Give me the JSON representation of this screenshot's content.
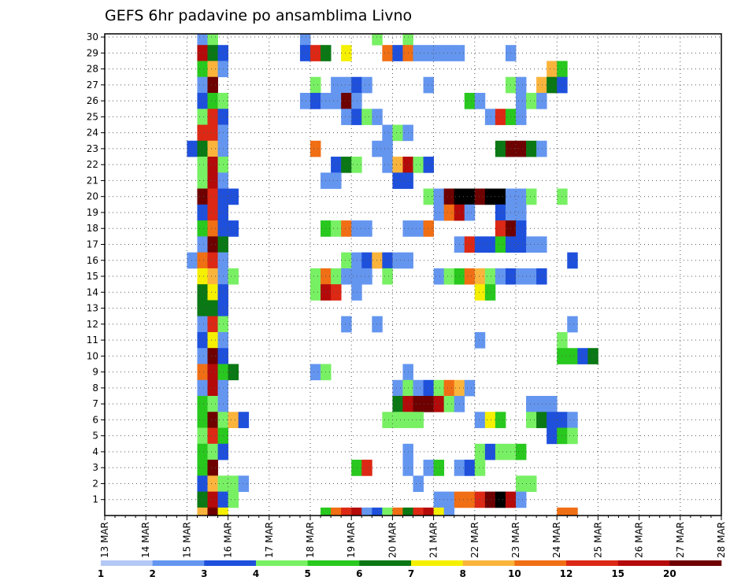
{
  "chart_data": {
    "type": "heatmap",
    "title": "GEFS 6hr padavine po ansamblima Livno",
    "x_tick_labels": [
      "13 MAR",
      "14 MAR",
      "15 MAR",
      "16 MAR",
      "17 MAR",
      "18 MAR",
      "19 MAR",
      "20 MAR",
      "21 MAR",
      "22 MAR",
      "23 MAR",
      "24 MAR",
      "25 MAR",
      "26 MAR",
      "27 MAR",
      "28 MAR"
    ],
    "y_tick_labels": [
      "1",
      "2",
      "3",
      "4",
      "5",
      "6",
      "7",
      "8",
      "9",
      "10",
      "11",
      "12",
      "13",
      "14",
      "15",
      "16",
      "17",
      "18",
      "19",
      "20",
      "21",
      "22",
      "23",
      "24",
      "25",
      "26",
      "27",
      "28",
      "29",
      "30"
    ],
    "ylim": [
      0,
      30
    ],
    "n_time_steps": 60,
    "grid": true,
    "legend": {
      "placement": "bottom",
      "labels": [
        "1",
        "2",
        "3",
        "4",
        "5",
        "6",
        "7",
        "8",
        "10",
        "12",
        "15",
        "20"
      ],
      "colors": [
        "#b4c8f5",
        "#6496f0",
        "#1e50dc",
        "#78f064",
        "#28c81e",
        "#0a7814",
        "#f5f000",
        "#fab43c",
        "#f06e14",
        "#dc2814",
        "#b40a0a",
        "#6e0000"
      ]
    },
    "cells": [
      [
        9,
        30,
        1
      ],
      [
        10,
        30,
        3
      ],
      [
        29,
        30,
        3
      ],
      [
        9,
        29,
        10
      ],
      [
        10,
        29,
        5
      ],
      [
        11,
        29,
        2
      ],
      [
        9,
        28,
        4
      ],
      [
        10,
        28,
        7
      ],
      [
        11,
        28,
        1
      ],
      [
        9,
        27,
        1
      ],
      [
        10,
        27,
        11
      ],
      [
        9,
        26,
        2
      ],
      [
        10,
        26,
        4
      ],
      [
        11,
        26,
        3
      ],
      [
        9,
        25,
        3
      ],
      [
        10,
        25,
        9
      ],
      [
        11,
        25,
        2
      ],
      [
        9,
        24,
        9
      ],
      [
        10,
        24,
        9
      ],
      [
        11,
        24,
        1
      ],
      [
        8,
        23,
        2
      ],
      [
        9,
        23,
        5
      ],
      [
        10,
        23,
        7
      ],
      [
        11,
        23,
        1
      ],
      [
        9,
        22,
        3
      ],
      [
        10,
        22,
        10
      ],
      [
        11,
        22,
        3
      ],
      [
        9,
        21,
        3
      ],
      [
        10,
        21,
        10
      ],
      [
        11,
        21,
        1
      ],
      [
        9,
        20,
        11
      ],
      [
        10,
        20,
        9
      ],
      [
        11,
        20,
        2
      ],
      [
        12,
        20,
        2
      ],
      [
        9,
        19,
        2
      ],
      [
        10,
        19,
        9
      ],
      [
        11,
        19,
        2
      ],
      [
        9,
        18,
        4
      ],
      [
        10,
        18,
        8
      ],
      [
        11,
        18,
        2
      ],
      [
        12,
        18,
        2
      ],
      [
        9,
        17,
        1
      ],
      [
        10,
        17,
        11
      ],
      [
        11,
        17,
        5
      ],
      [
        8,
        16,
        1
      ],
      [
        9,
        16,
        8
      ],
      [
        10,
        16,
        9
      ],
      [
        11,
        16,
        1
      ],
      [
        9,
        15,
        6
      ],
      [
        10,
        15,
        7
      ],
      [
        11,
        15,
        1
      ],
      [
        12,
        15,
        3
      ],
      [
        9,
        14,
        5
      ],
      [
        10,
        14,
        6
      ],
      [
        11,
        14,
        2
      ],
      [
        9,
        13,
        5
      ],
      [
        10,
        13,
        5
      ],
      [
        11,
        13,
        2
      ],
      [
        9,
        12,
        1
      ],
      [
        10,
        12,
        9
      ],
      [
        11,
        12,
        3
      ],
      [
        9,
        11,
        2
      ],
      [
        10,
        11,
        6
      ],
      [
        11,
        11,
        1
      ],
      [
        9,
        10,
        1
      ],
      [
        10,
        10,
        11
      ],
      [
        11,
        10,
        2
      ],
      [
        9,
        9,
        8
      ],
      [
        10,
        9,
        10
      ],
      [
        11,
        9,
        4
      ],
      [
        12,
        9,
        5
      ],
      [
        9,
        8,
        1
      ],
      [
        10,
        8,
        10
      ],
      [
        11,
        8,
        1
      ],
      [
        9,
        7,
        4
      ],
      [
        10,
        7,
        3
      ],
      [
        11,
        7,
        1
      ],
      [
        9,
        6,
        4
      ],
      [
        10,
        6,
        11
      ],
      [
        11,
        6,
        3
      ],
      [
        12,
        6,
        7
      ],
      [
        13,
        6,
        2
      ],
      [
        9,
        5,
        3
      ],
      [
        10,
        5,
        9
      ],
      [
        11,
        5,
        4
      ],
      [
        9,
        4,
        4
      ],
      [
        10,
        4,
        3
      ],
      [
        11,
        4,
        2
      ],
      [
        9,
        3,
        4
      ],
      [
        10,
        3,
        11
      ],
      [
        9,
        2,
        2
      ],
      [
        10,
        2,
        7
      ],
      [
        11,
        2,
        3
      ],
      [
        12,
        2,
        3
      ],
      [
        13,
        2,
        1
      ],
      [
        9,
        1,
        5
      ],
      [
        10,
        1,
        10
      ],
      [
        11,
        1,
        2
      ],
      [
        12,
        1,
        3
      ],
      [
        9,
        0,
        7
      ],
      [
        10,
        0,
        11
      ],
      [
        11,
        0,
        6
      ],
      [
        19,
        30,
        1
      ],
      [
        26,
        30,
        3
      ],
      [
        19,
        29,
        2
      ],
      [
        20,
        29,
        9
      ],
      [
        21,
        29,
        5
      ],
      [
        23,
        29,
        6
      ],
      [
        27,
        29,
        8
      ],
      [
        28,
        29,
        2
      ],
      [
        29,
        29,
        8
      ],
      [
        30,
        29,
        1
      ],
      [
        31,
        29,
        1
      ],
      [
        32,
        29,
        1
      ],
      [
        33,
        29,
        1
      ],
      [
        34,
        29,
        1
      ],
      [
        39,
        29,
        1
      ],
      [
        43,
        28,
        7
      ],
      [
        44,
        28,
        4
      ],
      [
        20,
        27,
        3
      ],
      [
        22,
        27,
        1
      ],
      [
        23,
        27,
        1
      ],
      [
        24,
        27,
        2
      ],
      [
        25,
        27,
        1
      ],
      [
        31,
        27,
        1
      ],
      [
        39,
        27,
        3
      ],
      [
        40,
        27,
        1
      ],
      [
        42,
        27,
        7
      ],
      [
        43,
        27,
        5
      ],
      [
        44,
        27,
        2
      ],
      [
        19,
        26,
        1
      ],
      [
        20,
        26,
        2
      ],
      [
        21,
        26,
        1
      ],
      [
        22,
        26,
        1
      ],
      [
        23,
        26,
        11
      ],
      [
        24,
        26,
        1
      ],
      [
        35,
        26,
        4
      ],
      [
        36,
        26,
        1
      ],
      [
        40,
        26,
        1
      ],
      [
        41,
        26,
        3
      ],
      [
        42,
        26,
        1
      ],
      [
        23,
        25,
        1
      ],
      [
        24,
        25,
        2
      ],
      [
        25,
        25,
        3
      ],
      [
        26,
        25,
        1
      ],
      [
        37,
        25,
        1
      ],
      [
        38,
        25,
        9
      ],
      [
        39,
        25,
        4
      ],
      [
        40,
        25,
        1
      ],
      [
        27,
        24,
        1
      ],
      [
        28,
        24,
        3
      ],
      [
        29,
        24,
        1
      ],
      [
        20,
        23,
        8
      ],
      [
        26,
        23,
        1
      ],
      [
        27,
        23,
        1
      ],
      [
        38,
        23,
        5
      ],
      [
        39,
        23,
        11
      ],
      [
        40,
        23,
        11
      ],
      [
        41,
        23,
        5
      ],
      [
        42,
        23,
        1
      ],
      [
        22,
        22,
        2
      ],
      [
        23,
        22,
        5
      ],
      [
        24,
        22,
        3
      ],
      [
        27,
        22,
        1
      ],
      [
        28,
        22,
        7
      ],
      [
        29,
        22,
        10
      ],
      [
        30,
        22,
        3
      ],
      [
        31,
        22,
        2
      ],
      [
        21,
        21,
        1
      ],
      [
        22,
        21,
        1
      ],
      [
        28,
        21,
        2
      ],
      [
        29,
        21,
        2
      ],
      [
        31,
        20,
        3
      ],
      [
        32,
        20,
        1
      ],
      [
        33,
        20,
        11
      ],
      [
        34,
        20,
        12
      ],
      [
        35,
        20,
        12
      ],
      [
        36,
        20,
        11
      ],
      [
        37,
        20,
        12
      ],
      [
        38,
        20,
        12
      ],
      [
        39,
        20,
        1
      ],
      [
        40,
        20,
        1
      ],
      [
        41,
        20,
        3
      ],
      [
        44,
        20,
        3
      ],
      [
        32,
        19,
        1
      ],
      [
        33,
        19,
        8
      ],
      [
        34,
        19,
        10
      ],
      [
        35,
        19,
        1
      ],
      [
        38,
        19,
        2
      ],
      [
        39,
        19,
        1
      ],
      [
        40,
        19,
        1
      ],
      [
        21,
        18,
        4
      ],
      [
        22,
        18,
        3
      ],
      [
        23,
        18,
        8
      ],
      [
        24,
        18,
        1
      ],
      [
        25,
        18,
        1
      ],
      [
        29,
        18,
        1
      ],
      [
        30,
        18,
        1
      ],
      [
        31,
        18,
        8
      ],
      [
        38,
        18,
        9
      ],
      [
        39,
        18,
        11
      ],
      [
        40,
        18,
        2
      ],
      [
        34,
        17,
        1
      ],
      [
        35,
        17,
        9
      ],
      [
        36,
        17,
        2
      ],
      [
        37,
        17,
        2
      ],
      [
        38,
        17,
        4
      ],
      [
        39,
        17,
        2
      ],
      [
        40,
        17,
        2
      ],
      [
        41,
        17,
        1
      ],
      [
        42,
        17,
        1
      ],
      [
        23,
        16,
        3
      ],
      [
        24,
        16,
        1
      ],
      [
        25,
        16,
        2
      ],
      [
        26,
        16,
        7
      ],
      [
        27,
        16,
        2
      ],
      [
        28,
        16,
        1
      ],
      [
        29,
        16,
        1
      ],
      [
        45,
        16,
        2
      ],
      [
        20,
        15,
        3
      ],
      [
        21,
        15,
        8
      ],
      [
        22,
        15,
        3
      ],
      [
        23,
        15,
        1
      ],
      [
        24,
        15,
        1
      ],
      [
        25,
        15,
        1
      ],
      [
        27,
        15,
        3
      ],
      [
        32,
        15,
        1
      ],
      [
        33,
        15,
        3
      ],
      [
        34,
        15,
        4
      ],
      [
        35,
        15,
        8
      ],
      [
        36,
        15,
        7
      ],
      [
        37,
        15,
        3
      ],
      [
        38,
        15,
        1
      ],
      [
        39,
        15,
        2
      ],
      [
        40,
        15,
        1
      ],
      [
        41,
        15,
        1
      ],
      [
        42,
        15,
        2
      ],
      [
        20,
        14,
        3
      ],
      [
        21,
        14,
        10
      ],
      [
        22,
        14,
        9
      ],
      [
        24,
        14,
        1
      ],
      [
        36,
        14,
        6
      ],
      [
        37,
        14,
        4
      ],
      [
        23,
        12,
        1
      ],
      [
        26,
        12,
        1
      ],
      [
        45,
        12,
        1
      ],
      [
        36,
        11,
        1
      ],
      [
        44,
        11,
        3
      ],
      [
        44,
        10,
        4
      ],
      [
        45,
        10,
        4
      ],
      [
        46,
        10,
        2
      ],
      [
        47,
        10,
        5
      ],
      [
        20,
        9,
        1
      ],
      [
        21,
        9,
        3
      ],
      [
        29,
        9,
        1
      ],
      [
        28,
        8,
        1
      ],
      [
        29,
        8,
        3
      ],
      [
        30,
        8,
        1
      ],
      [
        31,
        8,
        2
      ],
      [
        32,
        8,
        3
      ],
      [
        33,
        8,
        8
      ],
      [
        34,
        8,
        7
      ],
      [
        35,
        8,
        1
      ],
      [
        28,
        7,
        5
      ],
      [
        29,
        7,
        10
      ],
      [
        30,
        7,
        11
      ],
      [
        31,
        7,
        11
      ],
      [
        32,
        7,
        10
      ],
      [
        33,
        7,
        3
      ],
      [
        34,
        7,
        1
      ],
      [
        41,
        7,
        1
      ],
      [
        42,
        7,
        1
      ],
      [
        43,
        7,
        1
      ],
      [
        27,
        6,
        3
      ],
      [
        28,
        6,
        3
      ],
      [
        29,
        6,
        3
      ],
      [
        30,
        6,
        3
      ],
      [
        36,
        6,
        1
      ],
      [
        37,
        6,
        6
      ],
      [
        38,
        6,
        4
      ],
      [
        41,
        6,
        3
      ],
      [
        42,
        6,
        5
      ],
      [
        43,
        6,
        2
      ],
      [
        44,
        6,
        2
      ],
      [
        45,
        6,
        1
      ],
      [
        43,
        5,
        2
      ],
      [
        44,
        5,
        4
      ],
      [
        45,
        5,
        3
      ],
      [
        29,
        4,
        1
      ],
      [
        36,
        4,
        3
      ],
      [
        37,
        4,
        2
      ],
      [
        38,
        4,
        3
      ],
      [
        39,
        4,
        3
      ],
      [
        40,
        4,
        4
      ],
      [
        24,
        3,
        4
      ],
      [
        25,
        3,
        9
      ],
      [
        29,
        3,
        1
      ],
      [
        31,
        3,
        1
      ],
      [
        32,
        3,
        4
      ],
      [
        34,
        3,
        1
      ],
      [
        35,
        3,
        2
      ],
      [
        36,
        3,
        3
      ],
      [
        30,
        2,
        1
      ],
      [
        40,
        2,
        3
      ],
      [
        41,
        2,
        3
      ],
      [
        32,
        1,
        1
      ],
      [
        33,
        1,
        1
      ],
      [
        34,
        1,
        8
      ],
      [
        35,
        1,
        8
      ],
      [
        36,
        1,
        9
      ],
      [
        37,
        1,
        11
      ],
      [
        38,
        1,
        12
      ],
      [
        39,
        1,
        10
      ],
      [
        40,
        1,
        1
      ],
      [
        21,
        0,
        4
      ],
      [
        22,
        0,
        8
      ],
      [
        23,
        0,
        9
      ],
      [
        24,
        0,
        10
      ],
      [
        25,
        0,
        1
      ],
      [
        26,
        0,
        2
      ],
      [
        27,
        0,
        3
      ],
      [
        28,
        0,
        8
      ],
      [
        29,
        0,
        5
      ],
      [
        30,
        0,
        9
      ],
      [
        31,
        0,
        10
      ],
      [
        32,
        0,
        6
      ],
      [
        33,
        0,
        1
      ],
      [
        44,
        0,
        8
      ],
      [
        45,
        0,
        8
      ]
    ]
  }
}
